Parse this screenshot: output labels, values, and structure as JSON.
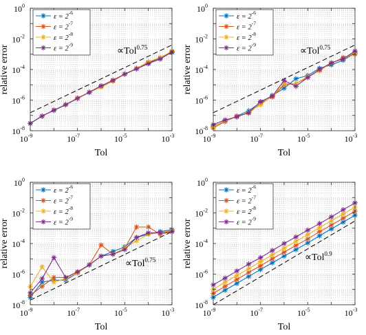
{
  "figure": {
    "xlabel": "Tol",
    "ylabel": "relative error"
  },
  "colors": [
    "#0072BD",
    "#D95319",
    "#EDB120",
    "#7E2F8E"
  ],
  "chart_data": [
    {
      "type": "line",
      "xscale": "log",
      "yscale": "log",
      "xlim": [
        1e-09,
        0.001
      ],
      "ylim": [
        1e-08,
        1
      ],
      "xlabel": "Tol",
      "ylabel": "relative error",
      "grid": true,
      "legend_position": "top-left",
      "x": [
        1e-09,
        3.16e-09,
        1e-08,
        3.16e-08,
        1e-07,
        3.16e-07,
        1e-06,
        3.16e-06,
        1e-05,
        3.16e-05,
        0.0001,
        0.000316,
        0.001
      ],
      "series": [
        {
          "name": "ε = 2^-6",
          "values": [
            3e-08,
            9e-08,
            2.1e-07,
            5e-07,
            1.3e-06,
            3.2e-06,
            8e-06,
            1.9e-05,
            5e-05,
            0.00011,
            0.00026,
            0.00055,
            0.0013
          ]
        },
        {
          "name": "ε = 2^-7",
          "values": [
            3e-08,
            9e-08,
            2.2e-07,
            5e-07,
            1.3e-06,
            3.3e-06,
            8.5e-06,
            2e-05,
            5e-05,
            0.00012,
            0.00029,
            0.00058,
            0.0015
          ]
        },
        {
          "name": "ε = 2^-8",
          "values": [
            3e-08,
            9e-08,
            2.2e-07,
            5.2e-07,
            1.4e-06,
            3.3e-06,
            7e-06,
            1.7e-05,
            5e-05,
            0.00012,
            0.00032,
            0.0006,
            0.0016
          ]
        },
        {
          "name": "ε = 2^-9",
          "values": [
            3e-08,
            9e-08,
            2.2e-07,
            5e-07,
            1.3e-06,
            3.2e-06,
            8.5e-06,
            1.9e-05,
            5e-05,
            0.00011,
            0.00024,
            0.00048,
            0.0014
          ]
        }
      ],
      "reference": {
        "label": "∝Tol",
        "exponent": "0.75",
        "x": [
          1e-09,
          0.001
        ],
        "y": [
          1.5e-07,
          0.004
        ]
      }
    },
    {
      "type": "line",
      "xscale": "log",
      "yscale": "log",
      "xlim": [
        1e-09,
        0.001
      ],
      "ylim": [
        1e-08,
        1
      ],
      "xlabel": "Tol",
      "ylabel": "relative error",
      "grid": true,
      "legend_position": "top-left",
      "x": [
        1e-09,
        3.16e-09,
        1e-08,
        3.16e-08,
        1e-07,
        3.16e-07,
        1e-06,
        3.16e-06,
        1e-05,
        3.16e-05,
        0.0001,
        0.000316,
        0.001
      ],
      "series": [
        {
          "name": "ε = 2^-6",
          "values": [
            2e-08,
            4e-08,
            9e-08,
            2e-07,
            7e-07,
            2e-06,
            6e-06,
            2.5e-05,
            4e-05,
            0.00012,
            0.0002,
            0.0004,
            0.0012
          ]
        },
        {
          "name": "ε = 2^-7",
          "values": [
            1.5e-08,
            4e-08,
            9e-08,
            1.4e-07,
            6e-07,
            1.6e-06,
            1e-05,
            1.2e-05,
            3e-05,
            9e-05,
            0.00025,
            0.0006,
            0.001
          ]
        },
        {
          "name": "ε = 2^-8",
          "values": [
            1.8e-08,
            4.5e-08,
            8e-08,
            1.6e-07,
            5e-07,
            1.8e-06,
            1.2e-05,
            1.2e-05,
            3.5e-05,
            8e-05,
            0.00028,
            0.0005,
            0.0013
          ]
        },
        {
          "name": "ε = 2^-9",
          "values": [
            2.5e-08,
            5e-08,
            8e-08,
            1.5e-07,
            8e-07,
            1.8e-06,
            1.9e-05,
            8e-06,
            3e-05,
            0.0001,
            0.00027,
            0.0005,
            0.0016
          ]
        }
      ],
      "reference": {
        "label": "∝Tol",
        "exponent": "0.75",
        "x": [
          1e-09,
          0.001
        ],
        "y": [
          1.5e-07,
          0.004
        ]
      }
    },
    {
      "type": "line",
      "xscale": "log",
      "yscale": "log",
      "xlim": [
        1e-09,
        0.001
      ],
      "ylim": [
        1e-08,
        1
      ],
      "xlabel": "Tol",
      "ylabel": "relative error",
      "grid": true,
      "legend_position": "top-left",
      "x": [
        1e-09,
        3.16e-09,
        1e-08,
        3.16e-08,
        1e-07,
        3.16e-07,
        1e-06,
        3.16e-06,
        1e-05,
        3.16e-05,
        0.0001,
        0.000316,
        0.001
      ],
      "series": [
        {
          "name": "ε = 2^-6",
          "values": [
            3e-08,
            3e-07,
            4e-07,
            4e-07,
            1.2e-06,
            4e-06,
            1.5e-05,
            3e-05,
            6e-05,
            0.00025,
            0.0004,
            0.0006,
            0.0008
          ]
        },
        {
          "name": "ε = 2^-7",
          "values": [
            4e-08,
            1.6e-07,
            6e-07,
            6e-07,
            1.4e-06,
            4e-06,
            8e-05,
            2e-05,
            5e-05,
            0.0012,
            0.0012,
            0.0004,
            0.0006
          ]
        },
        {
          "name": "ε = 2^-8",
          "values": [
            1.5e-07,
            3e-06,
            3e-07,
            5e-07,
            1.2e-06,
            4e-06,
            1.5e-05,
            2e-05,
            5e-05,
            0.00015,
            0.0004,
            0.0005,
            0.0007
          ]
        },
        {
          "name": "ε = 2^-9",
          "values": [
            6e-08,
            5e-07,
            1.2e-05,
            6e-07,
            1.4e-06,
            4e-06,
            1.5e-05,
            2e-05,
            4e-05,
            0.00025,
            0.0005,
            0.0005,
            0.0006
          ]
        }
      ],
      "reference": {
        "label": "∝Tol",
        "exponent": "0.75",
        "x": [
          1e-09,
          0.001
        ],
        "y": [
          2e-08,
          0.0006
        ]
      }
    },
    {
      "type": "line",
      "xscale": "log",
      "yscale": "log",
      "xlim": [
        1e-09,
        0.001
      ],
      "ylim": [
        1e-08,
        1
      ],
      "xlabel": "Tol",
      "ylabel": "relative error",
      "grid": true,
      "legend_position": "top-left",
      "x": [
        1e-09,
        3.16e-09,
        1e-08,
        3.16e-08,
        1e-07,
        3.16e-07,
        1e-06,
        3.16e-06,
        1e-05,
        3.16e-05,
        0.0001,
        0.000316,
        0.001
      ],
      "series": [
        {
          "name": "ε = 2^-6",
          "values": [
            3e-08,
            9e-08,
            2.5e-07,
            7e-07,
            2e-06,
            5.5e-06,
            1.5e-05,
            4e-05,
            0.00011,
            0.00032,
            0.0009,
            0.0025,
            0.007
          ]
        },
        {
          "name": "ε = 2^-7",
          "values": [
            5.5e-08,
            1.6e-07,
            4.5e-07,
            1.3e-06,
            3.5e-06,
            1e-05,
            2.7e-05,
            7.5e-05,
            0.0002,
            0.0006,
            0.0016,
            0.0045,
            0.013
          ]
        },
        {
          "name": "ε = 2^-8",
          "values": [
            1e-07,
            3e-07,
            8e-07,
            2.3e-06,
            6.5e-06,
            1.8e-05,
            5e-05,
            0.00014,
            0.00038,
            0.0011,
            0.003,
            0.0085,
            0.024
          ]
        },
        {
          "name": "ε = 2^-9",
          "values": [
            2e-07,
            5.5e-07,
            1.6e-06,
            4.5e-06,
            1.2e-05,
            3.5e-05,
            0.0001,
            0.00027,
            0.00075,
            0.002,
            0.0055,
            0.016,
            0.045
          ]
        }
      ],
      "reference": {
        "label": "∝Tol",
        "exponent": "0.9",
        "x": [
          1e-09,
          0.001
        ],
        "y": [
          1e-08,
          0.003
        ]
      }
    }
  ]
}
